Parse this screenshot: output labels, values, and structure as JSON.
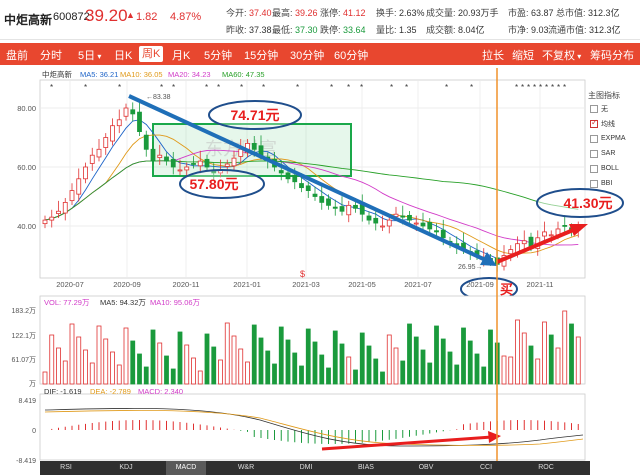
{
  "quote": {
    "name": "中炬高新",
    "code": "600872",
    "price": "39.20",
    "arrow": "▲",
    "change": "1.82",
    "change_pct": "4.87%",
    "open_label": "今开:",
    "open": "37.40",
    "high_label": "最高:",
    "high": "39.26",
    "limit_up_label": "涨停:",
    "limit_up": "41.12",
    "turnover_label": "换手:",
    "turnover": "2.63%",
    "volume_label": "成交量:",
    "volume": "20.93万手",
    "pe_label": "市盈:",
    "pe": "63.87",
    "mcap_label": "总市值:",
    "mcap": "312.3亿",
    "prev_close_label": "昨收:",
    "prev_close": "37.38",
    "low_label": "最低:",
    "low": "37.30",
    "limit_down_label": "跌停:",
    "limit_down": "33.64",
    "vol_ratio_label": "量比:",
    "vol_ratio": "1.35",
    "amount_label": "成交额:",
    "amount": "8.04亿",
    "pb_label": "市净:",
    "pb": "9.03",
    "float_mcap_label": "流通市值:",
    "float_mcap": "312.3亿"
  },
  "toolbar": {
    "intraday": "盘前",
    "minute": "分时",
    "five_day": "5日",
    "day_k": "日K",
    "week_k": "周K",
    "month_k": "月K",
    "min5": "5分钟",
    "min15": "15分钟",
    "min30": "30分钟",
    "min60": "60分钟",
    "drag": "拉长",
    "shorten": "缩短",
    "adjust": "不复权",
    "chip": "筹码分布"
  },
  "main_chart": {
    "stock_label": "中炬高新",
    "ma5_label": "MA5",
    "ma5": "36.21",
    "ma10_label": "MA10",
    "ma10": "36.05",
    "ma20_label": "MA20",
    "ma20": "34.23",
    "ma60_label": "MA60",
    "ma60": "47.35",
    "y_ticks": [
      "80.00",
      "60.00",
      "40.00"
    ],
    "x_ticks": [
      "2020-07",
      "2020-09",
      "2020-11",
      "2021-01",
      "2021-03",
      "2021-05",
      "2021-07",
      "2021-09",
      "2021-11"
    ],
    "high_mark": "83.38",
    "low_mark": "26.95",
    "annotation_top": "74.71元",
    "annotation_mid": "57.80元",
    "annotation_right": "41.30元",
    "buy_label": "买",
    "watermark": "东方财富",
    "colors": {
      "ma5": "#1e64c8",
      "ma10": "#e09a1a",
      "ma20": "#d23cc8",
      "ma60": "#28a028",
      "up": "#e03030",
      "down": "#1a9a3c"
    }
  },
  "indicators": {
    "title": "主图指标",
    "items": [
      {
        "label": "无",
        "checked": false
      },
      {
        "label": "均线",
        "checked": true
      },
      {
        "label": "EXPMA",
        "checked": false
      },
      {
        "label": "SAR",
        "checked": false
      },
      {
        "label": "BOLL",
        "checked": false
      },
      {
        "label": "BBI",
        "checked": false
      }
    ]
  },
  "volume_chart": {
    "vol_label": "VOL",
    "vol": "77.29万",
    "ma5_label": "MA5",
    "ma5": "94.32万",
    "ma10_label": "MA10",
    "ma10": "95.06万",
    "y_ticks": [
      "183.2万",
      "122.1万",
      "61.07万",
      "万"
    ]
  },
  "macd_chart": {
    "dif_label": "DIF",
    "dif": "-1.619",
    "dea_label": "DEA",
    "dea": "-2.789",
    "macd_label": "MACD",
    "macd": "2.340",
    "y_ticks": [
      "8.419",
      "0",
      "-8.419"
    ]
  },
  "bottom_tabs": [
    "RSI",
    "KDJ",
    "MACD",
    "W&R",
    "DMI",
    "BIAS",
    "OBV",
    "CCI",
    "ROC"
  ],
  "active_tab": "MACD"
}
